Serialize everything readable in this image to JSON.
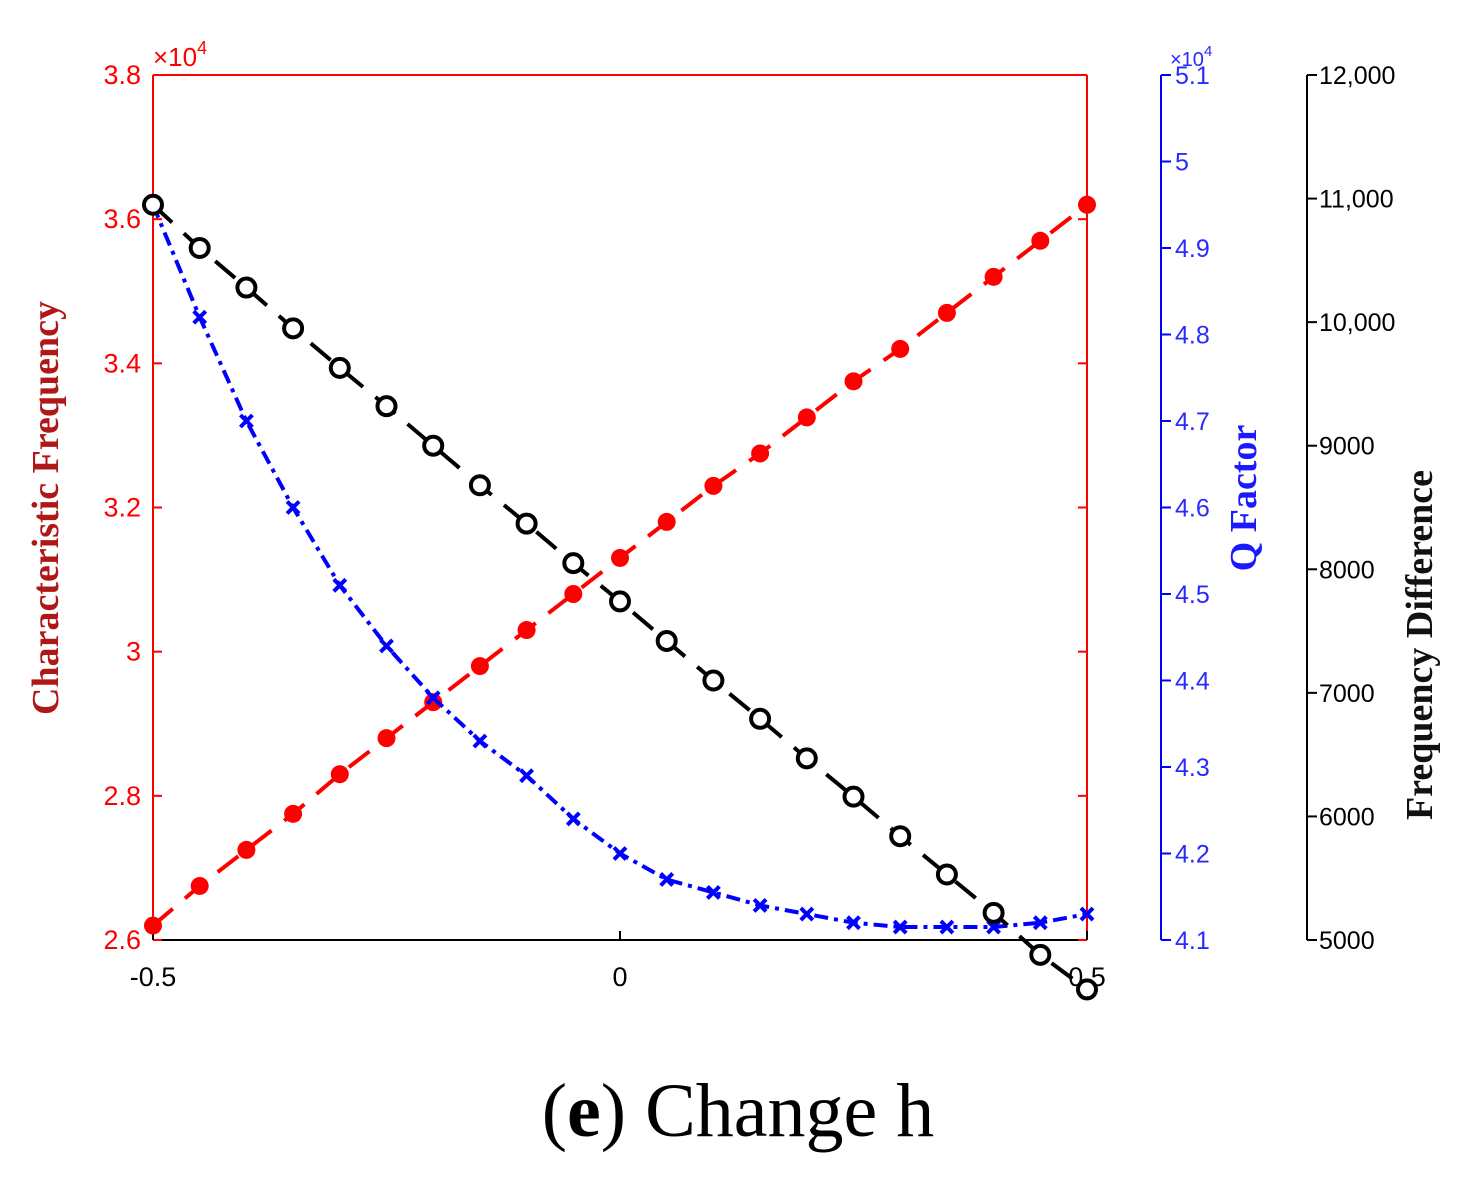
{
  "chart_data": {
    "type": "line",
    "x_axis": {
      "ticks": [
        -0.5,
        0,
        0.5
      ],
      "tick_labels": [
        "-0.5",
        "0",
        "0.5"
      ],
      "range": [
        -0.5,
        0.5
      ],
      "label": ""
    },
    "x": [
      -0.5,
      -0.45,
      -0.4,
      -0.35,
      -0.3,
      -0.25,
      -0.2,
      -0.15,
      -0.1,
      -0.05,
      0,
      0.05,
      0.1,
      0.15,
      0.2,
      0.25,
      0.3,
      0.35,
      0.4,
      0.45,
      0.5
    ],
    "y_axes": {
      "left": {
        "label": "Characteristic Frequency",
        "color": "#ff0000",
        "range": [
          2.6,
          3.8
        ],
        "ticks": [
          2.6,
          2.8,
          3,
          3.2,
          3.4,
          3.6,
          3.8
        ],
        "tick_labels": [
          "2.6",
          "2.8",
          "3",
          "3.2",
          "3.4",
          "3.6",
          "3.8"
        ],
        "exponent_base": "×10",
        "exponent_power": "4"
      },
      "right_inner": {
        "label": "Q Factor",
        "color": "#0000ff",
        "range": [
          4.1,
          5.1
        ],
        "ticks": [
          4.1,
          4.2,
          4.3,
          4.4,
          4.5,
          4.6,
          4.7,
          4.8,
          4.9,
          5,
          5.1
        ],
        "tick_labels": [
          "4.1",
          "4.2",
          "4.3",
          "4.4",
          "4.5",
          "4.6",
          "4.7",
          "4.8",
          "4.9",
          "5",
          "5.1"
        ],
        "exponent_base": "×10",
        "exponent_power": "4"
      },
      "right_outer": {
        "label": "Frequency Difference",
        "color": "#000000",
        "range": [
          5000,
          12000
        ],
        "ticks": [
          5000,
          6000,
          7000,
          8000,
          9000,
          10000,
          11000,
          12000
        ],
        "tick_labels": [
          "5000",
          "6000",
          "7000",
          "8000",
          "9000",
          "10,000",
          "11,000",
          "12,000"
        ]
      }
    },
    "series": [
      {
        "name": "Characteristic Frequency",
        "axis": "left",
        "color": "#ff0000",
        "marker": "filled-circle",
        "line": "dashed",
        "values": [
          2.62,
          2.675,
          2.725,
          2.775,
          2.83,
          2.88,
          2.93,
          2.98,
          3.03,
          3.08,
          3.13,
          3.18,
          3.23,
          3.275,
          3.325,
          3.375,
          3.42,
          3.47,
          3.52,
          3.57,
          3.62
        ]
      },
      {
        "name": "Q Factor",
        "axis": "right_inner",
        "color": "#0000ff",
        "marker": "x",
        "line": "dash-dot",
        "values": [
          4.95,
          4.82,
          4.7,
          4.6,
          4.51,
          4.44,
          4.38,
          4.33,
          4.29,
          4.24,
          4.2,
          4.17,
          4.155,
          4.14,
          4.13,
          4.12,
          4.115,
          4.115,
          4.115,
          4.12,
          4.13
        ]
      },
      {
        "name": "Frequency Difference",
        "axis": "right_outer",
        "color": "#000000",
        "marker": "open-circle",
        "line": "dashed",
        "values": [
          10950,
          10600,
          10280,
          9950,
          9630,
          9320,
          9000,
          8680,
          8370,
          8050,
          7740,
          7420,
          7100,
          6790,
          6470,
          6160,
          5840,
          5530,
          5220,
          4880,
          4600
        ]
      }
    ]
  },
  "caption": {
    "letter": "e",
    "open_paren": "(",
    "close_paren": ")",
    "text": " Change h"
  }
}
